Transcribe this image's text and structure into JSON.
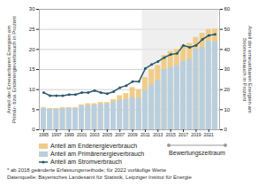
{
  "chart_data": {
    "type": "bar",
    "x": [
      1995,
      1996,
      1997,
      1998,
      1999,
      2000,
      2001,
      2002,
      2003,
      2004,
      2005,
      2006,
      2007,
      2008,
      2009,
      2010,
      2011,
      2012,
      2013,
      2014,
      2015,
      2016,
      2017,
      2018,
      2019,
      2020,
      2021,
      2022
    ],
    "xlim": [
      1994.3,
      2022.7
    ],
    "xticks": [
      1995,
      1997,
      1999,
      2001,
      2003,
      2005,
      2007,
      2009,
      2011,
      2013,
      2015,
      2017,
      2019,
      2021
    ],
    "series": [
      {
        "name": "Anteil am Endenergieverbrauch",
        "type": "bar",
        "color": "#f0cc88",
        "values": [
          5.5,
          5.3,
          5.3,
          5.5,
          5.5,
          5.5,
          6.2,
          6.5,
          6.5,
          6.8,
          6.8,
          7.5,
          8.5,
          9.0,
          10.5,
          10.0,
          13.0,
          15.0,
          16.0,
          18.5,
          19.5,
          20.0,
          21.0,
          21.5,
          23.0,
          24.0,
          25.0,
          25.1
        ]
      },
      {
        "name": "Anteil am Primärenergieverbrauch",
        "type": "bar",
        "color": "#b8cfe0",
        "values": [
          5.3,
          5.1,
          5.1,
          5.2,
          5.3,
          5.2,
          5.9,
          6.0,
          6.1,
          6.3,
          6.4,
          6.8,
          7.3,
          7.5,
          8.0,
          7.8,
          9.8,
          11.2,
          12.2,
          15.0,
          15.5,
          16.0,
          17.0,
          17.5,
          20.0,
          20.5,
          22.0,
          21.9
        ]
      },
      {
        "name": "Anteil am Stromverbrauch",
        "type": "line",
        "axis": "y2",
        "marker": "circle",
        "color": "#2a5a6a",
        "values": [
          18.5,
          17.0,
          17.0,
          17.0,
          17.5,
          17.5,
          18.5,
          18.5,
          19.5,
          18.5,
          18.0,
          19.0,
          21.0,
          22.0,
          24.0,
          24.0,
          30.5,
          32.5,
          34.0,
          36.0,
          37.5,
          38.0,
          42.0,
          41.0,
          42.0,
          45.0,
          47.0,
          47.5
        ]
      }
    ],
    "ylim": [
      0,
      30
    ],
    "yticks": [
      0,
      5,
      10,
      15,
      20,
      25,
      30
    ],
    "y2lim": [
      0,
      60
    ],
    "y2ticks": [
      0,
      10,
      20,
      30,
      40,
      50,
      60
    ],
    "ylabel": "Anteil der Erneuerbaren Energien am\nPrimär- bzw. Endenergieverbrauch in Prozent",
    "y2label": "Anteil der erneuerbaren Energien am\nStromverbrauch in Prozent",
    "annotations": [
      {
        "text": "Bewertungszeitraum",
        "x_start": 2011,
        "x_end": 2022
      }
    ],
    "footnotes": [
      "* ab 2018 geänderte Erfassungsmethode; für 2022 vorläufige Werte",
      "Datenquelle: Bayerisches Landesamt für Statistik, Leipziger Institut für Energie"
    ],
    "grid": true,
    "legend": "bottom"
  }
}
